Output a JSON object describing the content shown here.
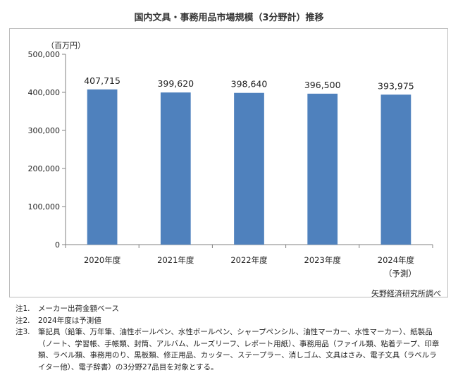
{
  "chart_data": {
    "type": "bar",
    "title": "国内文具・事務用品市場規模（3分野計）推移",
    "unit": "（百万円）",
    "categories": [
      "2020年度",
      "2021年度",
      "2022年度",
      "2023年度",
      "2024年度"
    ],
    "category_sublabels": [
      "",
      "",
      "",
      "",
      "（予測）"
    ],
    "values": [
      407715,
      399620,
      398640,
      396500,
      393975
    ],
    "value_labels": [
      "407,715",
      "399,620",
      "398,640",
      "396,500",
      "393,975"
    ],
    "ylim": [
      0,
      500000
    ],
    "yticks": [
      0,
      100000,
      200000,
      300000,
      400000,
      500000
    ],
    "ytick_labels": [
      "0",
      "100,000",
      "200,000",
      "300,000",
      "400,000",
      "500,000"
    ],
    "grid": false,
    "bar_color": "#4f81bd"
  },
  "source": "矢野経済研究所調べ",
  "notes": [
    {
      "label": "注1.",
      "text": "メーカー出荷金額ベース"
    },
    {
      "label": "注2.",
      "text": "2024年度は予測値"
    },
    {
      "label": "注3.",
      "text": "筆記具（鉛筆、万年筆、油性ボールペン、水性ボールペン、シャープペンシル、油性マーカー、水性マーカー）、紙製品（ノート、学習帳、手帳類、封筒、アルバム、ルーズリーフ、レポート用紙）、事務用品（ファイル類、粘着テープ、印章類、ラベル類、事務用のり、黒板類、修正用品、カッター、ステープラー、消しゴム、文具はさみ、電子文具（ラベルライター他）、電子辞書）の3分野27品目を対象とする。"
    }
  ]
}
